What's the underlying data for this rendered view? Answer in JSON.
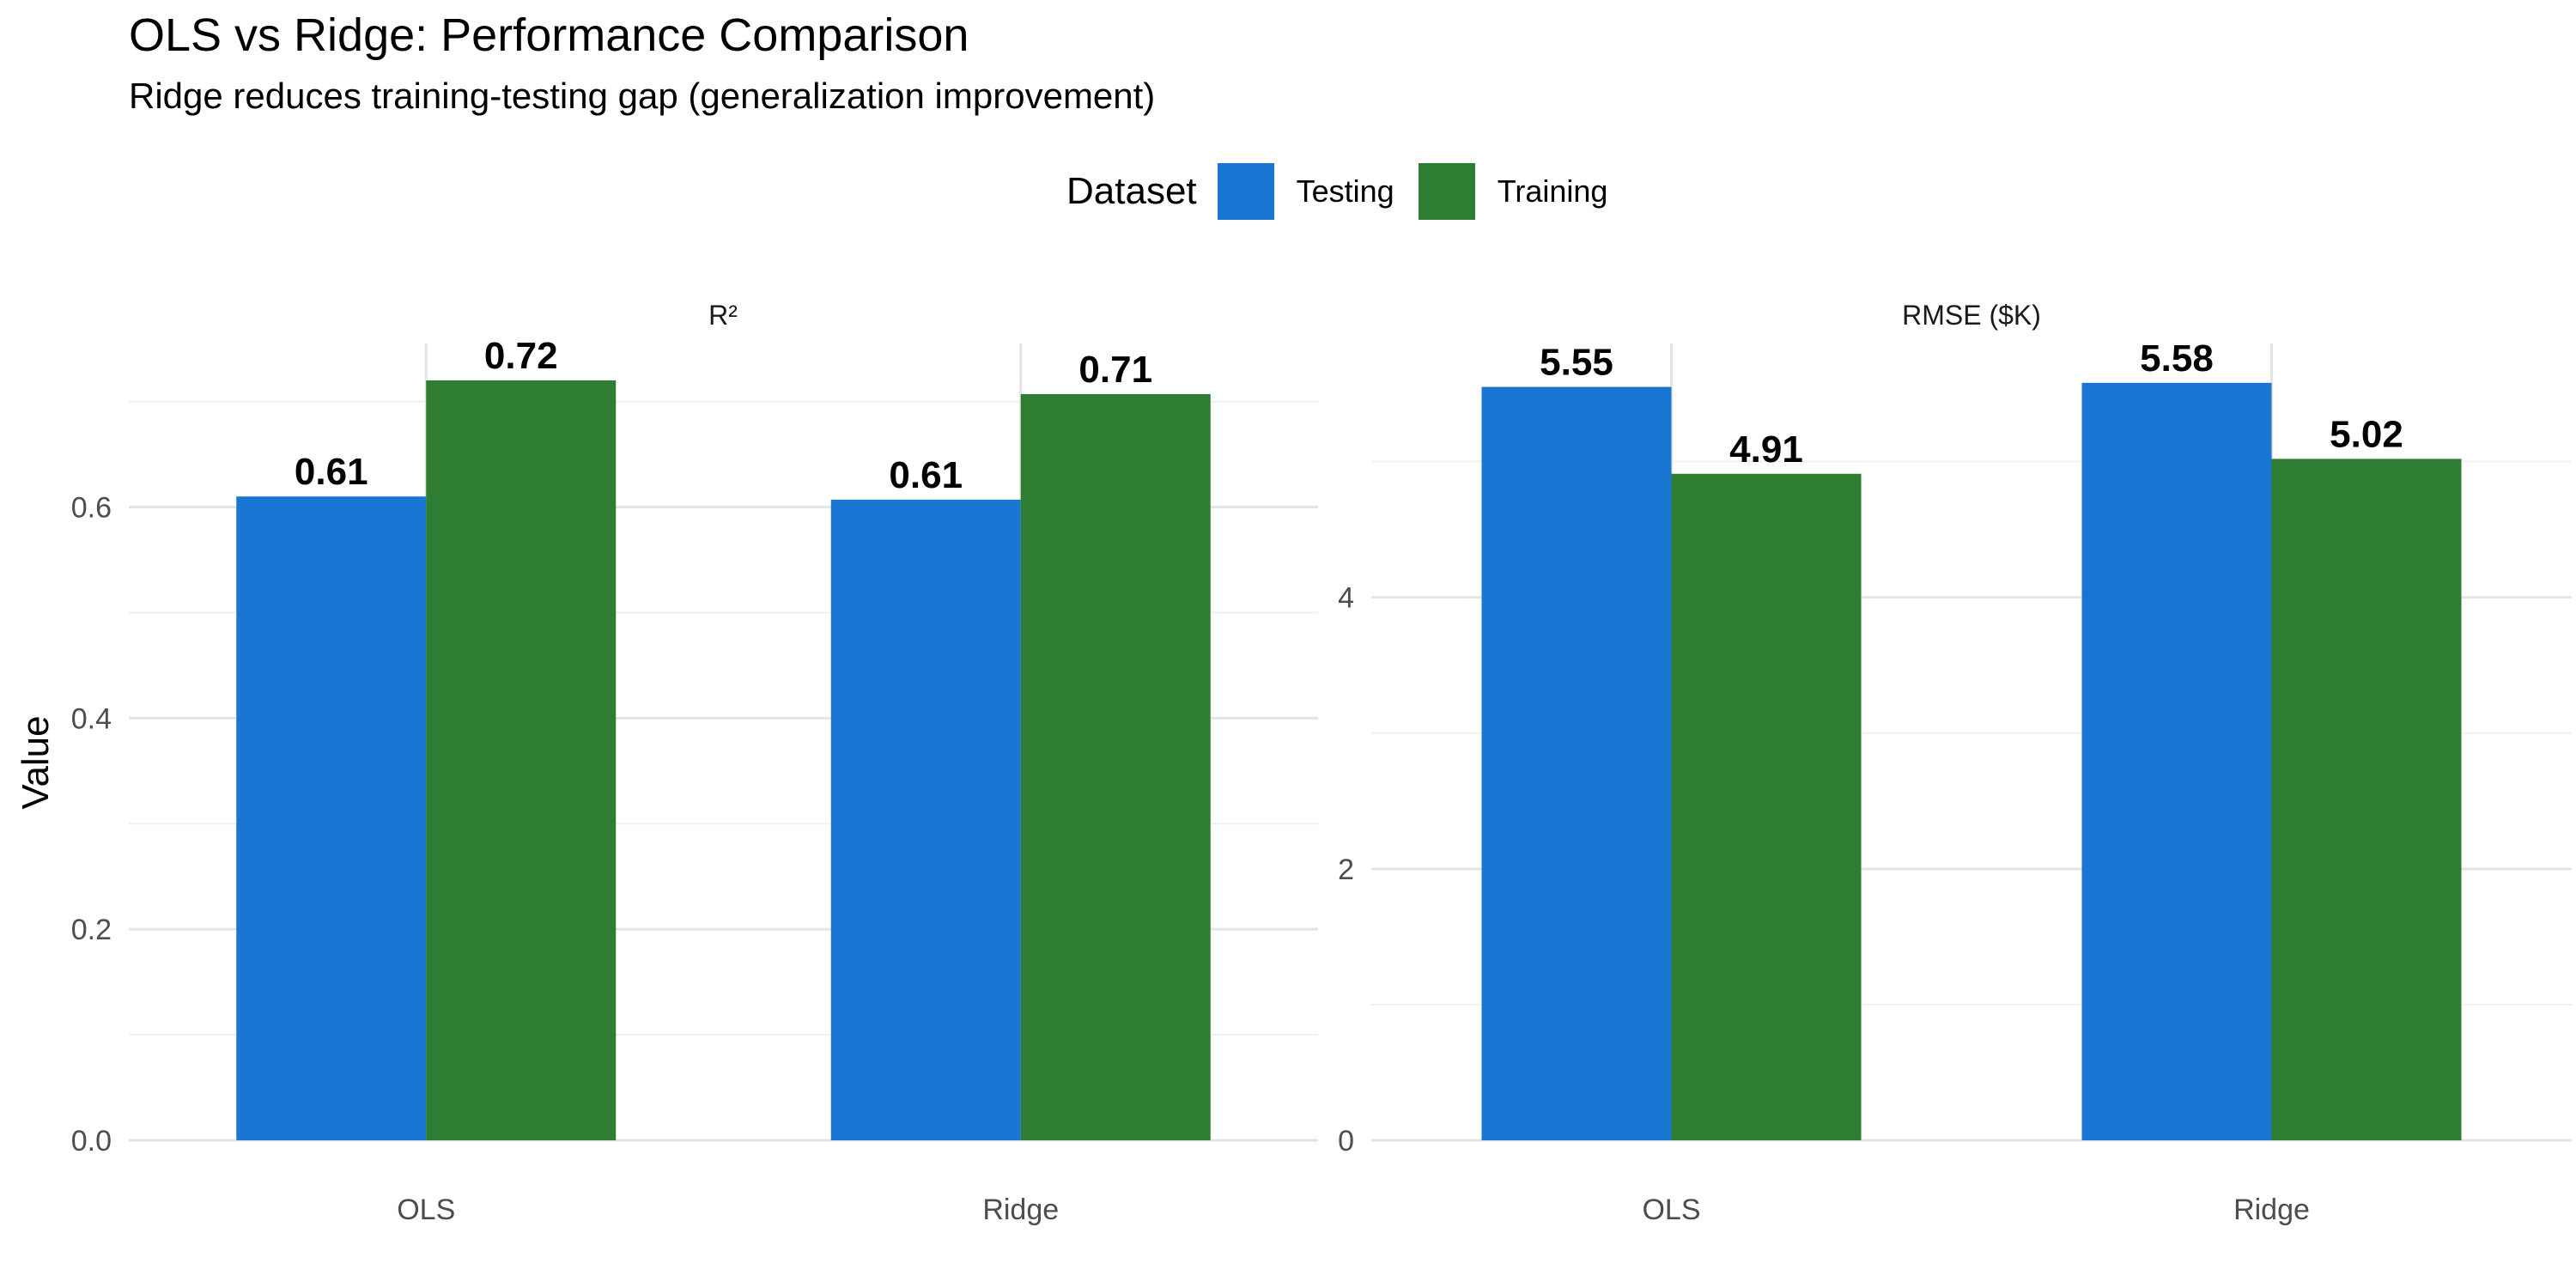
{
  "title": "OLS vs Ridge: Performance Comparison",
  "subtitle": "Ridge reduces training-testing gap (generalization improvement)",
  "legend": {
    "title": "Dataset",
    "items": [
      {
        "label": "Testing",
        "color": "#1976D2"
      },
      {
        "label": "Training",
        "color": "#2E7D32"
      }
    ]
  },
  "chart_data": [
    {
      "type": "bar",
      "panel_title": "R²",
      "categories": [
        "OLS",
        "Ridge"
      ],
      "series": [
        {
          "name": "Testing",
          "values": [
            0.61,
            0.607
          ],
          "labels": [
            "0.61",
            "0.61"
          ],
          "color": "#1976D2"
        },
        {
          "name": "Training",
          "values": [
            0.72,
            0.707
          ],
          "labels": [
            "0.72",
            "0.71"
          ],
          "color": "#2E7D32"
        }
      ],
      "ylabel": "Value",
      "xlabel": "",
      "ylim": [
        0,
        0.755
      ],
      "yticks": [
        0,
        0.2,
        0.4,
        0.6
      ],
      "ytick_labels": [
        "0.0",
        "0.2",
        "0.4",
        "0.6"
      ],
      "grid": true,
      "legend_position": "top"
    },
    {
      "type": "bar",
      "panel_title": "RMSE ($K)",
      "categories": [
        "OLS",
        "Ridge"
      ],
      "series": [
        {
          "name": "Testing",
          "values": [
            5.55,
            5.58
          ],
          "labels": [
            "5.55",
            "5.58"
          ],
          "color": "#1976D2"
        },
        {
          "name": "Training",
          "values": [
            4.91,
            5.02
          ],
          "labels": [
            "4.91",
            "5.02"
          ],
          "color": "#2E7D32"
        }
      ],
      "ylabel": "",
      "xlabel": "",
      "ylim": [
        0,
        5.87
      ],
      "yticks": [
        0,
        2,
        4
      ],
      "ytick_labels": [
        "0",
        "2",
        "4"
      ],
      "grid": true,
      "legend_position": "top"
    }
  ]
}
